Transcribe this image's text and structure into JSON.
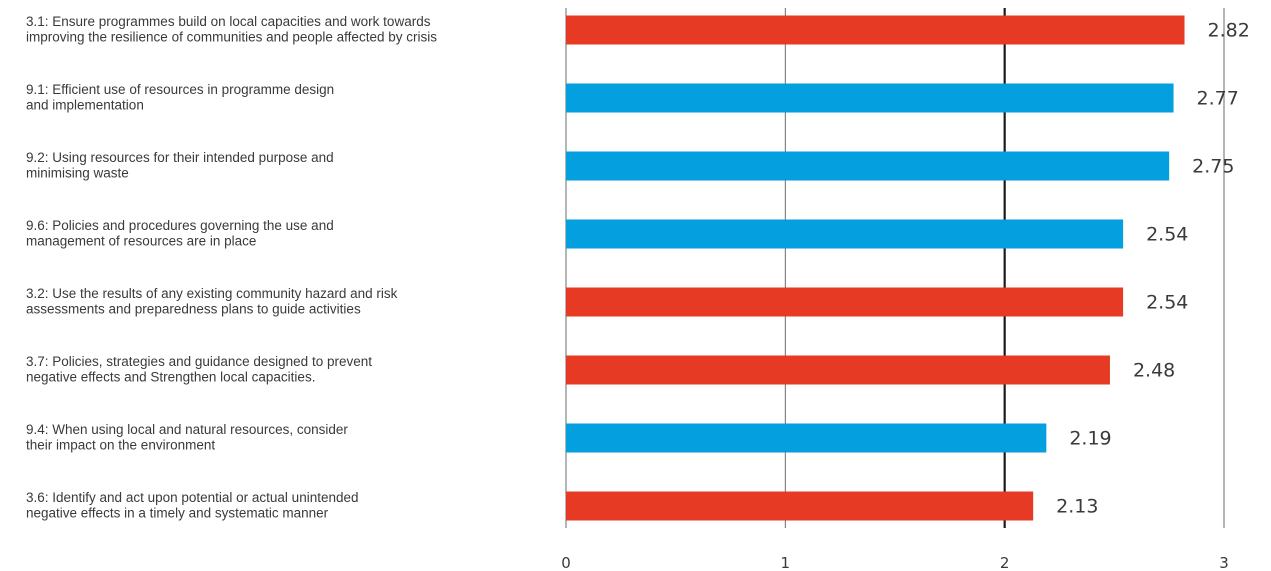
{
  "chart_data": {
    "type": "bar",
    "orientation": "horizontal",
    "title": "",
    "xlabel": "",
    "ylabel": "",
    "xlim": [
      0,
      3
    ],
    "x_ticks": [
      "0",
      "1",
      "2",
      "3"
    ],
    "reference_line": 2,
    "grid": true,
    "colors": {
      "red": "#e63a24",
      "blue": "#039fdf"
    },
    "bars": [
      {
        "label": [
          "3.1: Ensure programmes build on local capacities and work towards",
          "improving the resilience of communities and people affected by crisis"
        ],
        "value": 2.82,
        "value_label": "2.82",
        "color": "red"
      },
      {
        "label": [
          "9.1: Efficient use of resources in programme design",
          "and implementation"
        ],
        "value": 2.77,
        "value_label": "2.77",
        "color": "blue"
      },
      {
        "label": [
          "9.2: Using resources for their intended purpose and",
          "minimising waste"
        ],
        "value": 2.75,
        "value_label": "2.75",
        "color": "blue"
      },
      {
        "label": [
          "9.6: Policies and procedures governing the use and",
          "management of resources are in place"
        ],
        "value": 2.54,
        "value_label": "2.54",
        "color": "blue"
      },
      {
        "label": [
          "3.2: Use the results of any existing community hazard and risk",
          "assessments and preparedness plans to guide activities"
        ],
        "value": 2.54,
        "value_label": "2.54",
        "color": "red"
      },
      {
        "label": [
          "3.7: Policies, strategies and guidance designed to prevent",
          "negative effects and Strengthen local capacities."
        ],
        "value": 2.48,
        "value_label": "2.48",
        "color": "red"
      },
      {
        "label": [
          "9.4: When using local and natural resources, consider",
          "their impact on the environment"
        ],
        "value": 2.19,
        "value_label": "2.19",
        "color": "blue"
      },
      {
        "label": [
          "3.6: Identify and act upon potential or actual unintended",
          "negative effects in a timely and systematic manner"
        ],
        "value": 2.13,
        "value_label": "2.13",
        "color": "red"
      }
    ]
  }
}
